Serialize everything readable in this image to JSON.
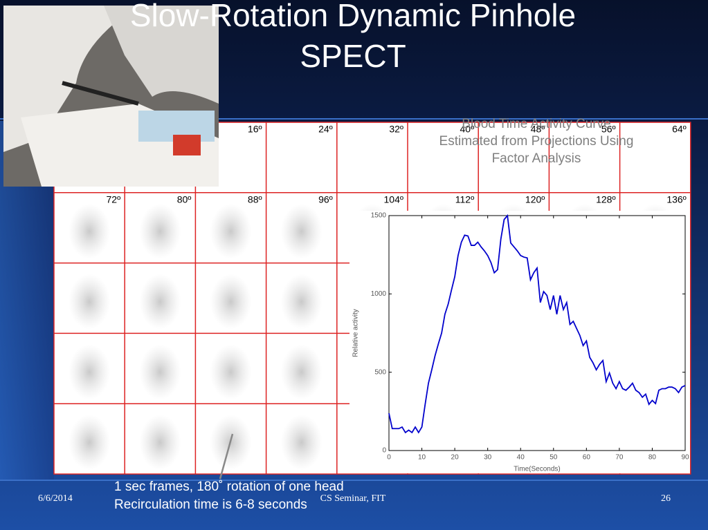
{
  "title": [
    "Slow-Rotation Dynamic Pinhole",
    "SPECT"
  ],
  "angle_labels": [
    [
      "16º",
      "24º",
      "32º",
      "40º",
      "48º",
      "56º",
      "64º"
    ],
    [
      "72º",
      "80º",
      "88º",
      "96º",
      "104º",
      "112º",
      "120º",
      "128º",
      "136º"
    ]
  ],
  "caption": [
    "1 sec frames, 180˚ rotation of one head",
    "Recirculation time is 6-8 seconds"
  ],
  "footer": {
    "date": "6/6/2014",
    "center": "CS Seminar, FIT",
    "page": "26"
  },
  "chart_data": {
    "type": "line",
    "title": [
      "Blood Time Activity Curve",
      "Estimated from Projections Using",
      "Factor Analysis"
    ],
    "xlabel": "Time(Seconds)",
    "ylabel": "Relative activity",
    "x": [
      0,
      1,
      2,
      3,
      4,
      5,
      6,
      7,
      8,
      9,
      10,
      11,
      12,
      13,
      14,
      15,
      16,
      17,
      18,
      19,
      20,
      21,
      22,
      23,
      24,
      25,
      26,
      27,
      28,
      29,
      30,
      31,
      32,
      33,
      34,
      35,
      36,
      37,
      38,
      39,
      40,
      41,
      42,
      43,
      44,
      45,
      46,
      47,
      48,
      49,
      50,
      51,
      52,
      53,
      54,
      55,
      56,
      57,
      58,
      59,
      60,
      61,
      62,
      63,
      64,
      65,
      66,
      67,
      68,
      69,
      70,
      71,
      72,
      73,
      74,
      75,
      76,
      77,
      78,
      79,
      80,
      81,
      82,
      83,
      84,
      85,
      86,
      87,
      88,
      89,
      90
    ],
    "series": [
      {
        "color": "#0000cc",
        "values": [
          238,
          140,
          140,
          140,
          150,
          115,
          130,
          115,
          150,
          115,
          150,
          295,
          430,
          515,
          605,
          680,
          750,
          870,
          935,
          1025,
          1110,
          1245,
          1330,
          1375,
          1370,
          1310,
          1310,
          1330,
          1300,
          1275,
          1245,
          1200,
          1135,
          1155,
          1350,
          1475,
          1500,
          1325,
          1300,
          1275,
          1245,
          1235,
          1230,
          1090,
          1135,
          1165,
          945,
          1015,
          990,
          900,
          990,
          870,
          990,
          900,
          945,
          805,
          825,
          780,
          735,
          670,
          700,
          595,
          560,
          515,
          550,
          575,
          440,
          495,
          430,
          395,
          440,
          395,
          385,
          405,
          430,
          385,
          370,
          340,
          360,
          295,
          320,
          300,
          385,
          395,
          395,
          405,
          405,
          395,
          370,
          405,
          415
        ]
      }
    ],
    "xlim": [
      0,
      90
    ],
    "ylim": [
      0,
      1500
    ],
    "xticks": [
      0,
      10,
      20,
      30,
      40,
      50,
      60,
      70,
      80,
      90
    ],
    "yticks": [
      0,
      500,
      1000,
      1500
    ]
  }
}
